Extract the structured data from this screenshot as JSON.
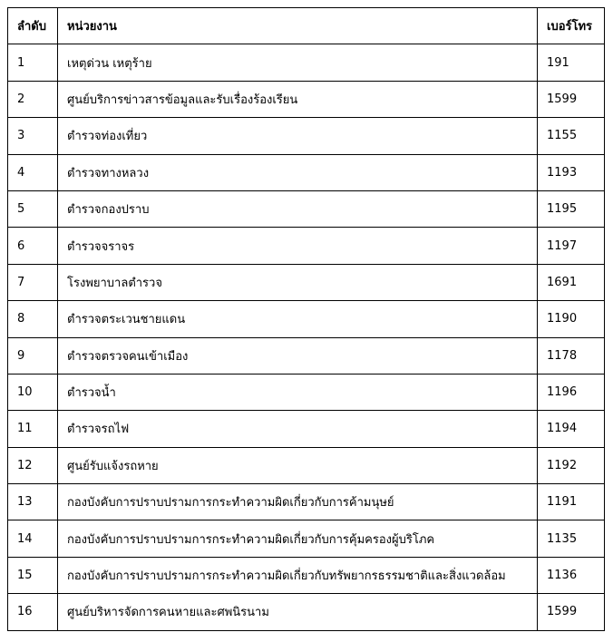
{
  "table": {
    "header": [
      "ลำดับ",
      "หน่วยงาน",
      "เบอร์โทร"
    ],
    "rows": [
      [
        "1",
        "เหตุด่วน เหตุร้าย",
        "191"
      ],
      [
        "2",
        "ศูนย์บริการข่าวสารข้อมูลและรับเรื่องร้องเรียน",
        "1599"
      ],
      [
        "3",
        "ตำรวจท่องเที่ยว",
        "1155"
      ],
      [
        "4",
        "ตำรวจทางหลวง",
        "1193"
      ],
      [
        "5",
        "ตำรวจกองปราบ",
        "1195"
      ],
      [
        "6",
        "ตำรวจจราจร",
        "1197"
      ],
      [
        "7",
        "โรงพยาบาลตำรวจ",
        "1691"
      ],
      [
        "8",
        "ตำรวจตระเวนชายแดน",
        "1190"
      ],
      [
        "9",
        "ตำรวจตรวจคนเข้าเมือง",
        "1178"
      ],
      [
        "10",
        "ตำรวจน้ำ",
        "1196"
      ],
      [
        "11",
        "ตำรวจรถไฟ",
        "1194"
      ],
      [
        "12",
        "ศูนย์รับแจ้งรถหาย",
        "1192"
      ],
      [
        "13",
        "กองบังคับการปราบปรามการกระทำความผิดเกี่ยวกับการค้ามนุษย์",
        "1191"
      ],
      [
        "14",
        "กองบังคับการปราบปรามการกระทำความผิดเกี่ยวกับการคุ้มครองผู้บริโภค",
        "1135"
      ],
      [
        "15",
        "กองบังคับการปราบปรามการกระทำความผิดเกี่ยวกับทรัพยากรธรรมชาติและสิ่งแวดล้อม",
        "1136"
      ],
      [
        "16",
        "ศูนย์บริหารจัดการคนหายและศพนิรนาม",
        "1599"
      ]
    ]
  }
}
